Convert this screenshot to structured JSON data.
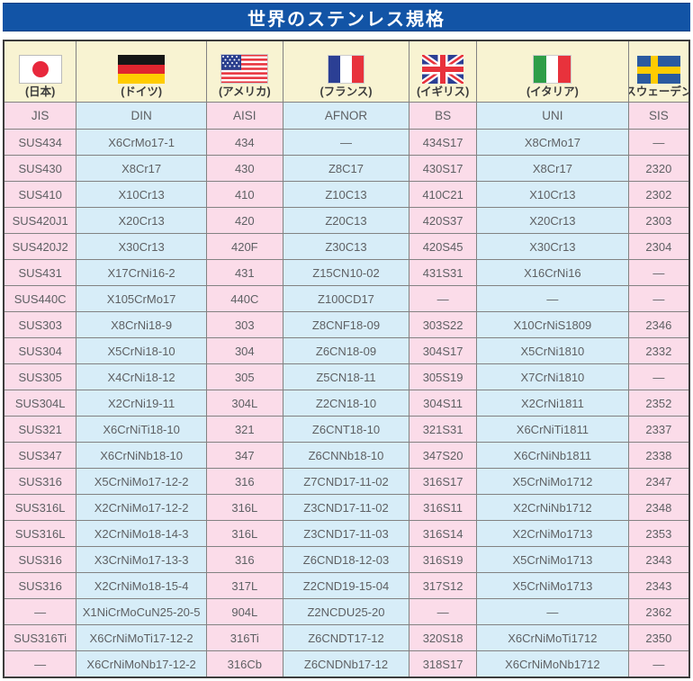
{
  "title": "世界のステンレス規格",
  "colors": {
    "title_bar_blue": "#1254A6",
    "flag_row_cream": "#F8F3D2",
    "pink_column": "#FBDCE9",
    "blue_column": "#D7EDF8",
    "grid_line": "#828282",
    "text_gray": "#5E6063"
  },
  "table": {
    "columns": [
      {
        "country": "(日本)",
        "standard": "JIS",
        "flag": "japan-flag"
      },
      {
        "country": "(ドイツ)",
        "standard": "DIN",
        "flag": "germany-flag"
      },
      {
        "country": "(アメリカ)",
        "standard": "AISI",
        "flag": "usa-flag"
      },
      {
        "country": "(フランス)",
        "standard": "AFNOR",
        "flag": "france-flag"
      },
      {
        "country": "(イギリス)",
        "standard": "BS",
        "flag": "uk-flag"
      },
      {
        "country": "(イタリア)",
        "standard": "UNI",
        "flag": "italy-flag"
      },
      {
        "country": "(スウェーデン)",
        "standard": "SIS",
        "flag": "sweden-flag"
      }
    ],
    "rows": [
      [
        "SUS434",
        "X6CrMo17-1",
        "434",
        "—",
        "434S17",
        "X8CrMo17",
        "—"
      ],
      [
        "SUS430",
        "X8Cr17",
        "430",
        "Z8C17",
        "430S17",
        "X8Cr17",
        "2320"
      ],
      [
        "SUS410",
        "X10Cr13",
        "410",
        "Z10C13",
        "410C21",
        "X10Cr13",
        "2302"
      ],
      [
        "SUS420J1",
        "X20Cr13",
        "420",
        "Z20C13",
        "420S37",
        "X20Cr13",
        "2303"
      ],
      [
        "SUS420J2",
        "X30Cr13",
        "420F",
        "Z30C13",
        "420S45",
        "X30Cr13",
        "2304"
      ],
      [
        "SUS431",
        "X17CrNi16-2",
        "431",
        "Z15CN10-02",
        "431S31",
        "X16CrNi16",
        "—"
      ],
      [
        "SUS440C",
        "X105CrMo17",
        "440C",
        "Z100CD17",
        "—",
        "—",
        "—"
      ],
      [
        "SUS303",
        "X8CrNi18-9",
        "303",
        "Z8CNF18-09",
        "303S22",
        "X10CrNiS1809",
        "2346"
      ],
      [
        "SUS304",
        "X5CrNi18-10",
        "304",
        "Z6CN18-09",
        "304S17",
        "X5CrNi1810",
        "2332"
      ],
      [
        "SUS305",
        "X4CrNi18-12",
        "305",
        "Z5CN18-11",
        "305S19",
        "X7CrNi1810",
        "—"
      ],
      [
        "SUS304L",
        "X2CrNi19-11",
        "304L",
        "Z2CN18-10",
        "304S11",
        "X2CrNi1811",
        "2352"
      ],
      [
        "SUS321",
        "X6CrNiTi18-10",
        "321",
        "Z6CNT18-10",
        "321S31",
        "X6CrNiTi1811",
        "2337"
      ],
      [
        "SUS347",
        "X6CrNiNb18-10",
        "347",
        "Z6CNNb18-10",
        "347S20",
        "X6CrNiNb1811",
        "2338"
      ],
      [
        "SUS316",
        "X5CrNiMo17-12-2",
        "316",
        "Z7CND17-11-02",
        "316S17",
        "X5CrNiMo1712",
        "2347"
      ],
      [
        "SUS316L",
        "X2CrNiMo17-12-2",
        "316L",
        "Z3CND17-11-02",
        "316S11",
        "X2CrNiNb1712",
        "2348"
      ],
      [
        "SUS316L",
        "X2CrNiMo18-14-3",
        "316L",
        "Z3CND17-11-03",
        "316S14",
        "X2CrNiMo1713",
        "2353"
      ],
      [
        "SUS316",
        "X3CrNiMo17-13-3",
        "316",
        "Z6CND18-12-03",
        "316S19",
        "X5CrNiMo1713",
        "2343"
      ],
      [
        "SUS316",
        "X2CrNiMo18-15-4",
        "317L",
        "Z2CND19-15-04",
        "317S12",
        "X5CrNiMo1713",
        "2343"
      ],
      [
        "—",
        "X1NiCrMoCuN25-20-5",
        "904L",
        "Z2NCDU25-20",
        "—",
        "—",
        "2362"
      ],
      [
        "SUS316Ti",
        "X6CrNiMoTi17-12-2",
        "316Ti",
        "Z6CNDT17-12",
        "320S18",
        "X6CrNiMoTi1712",
        "2350"
      ],
      [
        "—",
        "X6CrNiMoNb17-12-2",
        "316Cb",
        "Z6CNDNb17-12",
        "318S17",
        "X6CrNiMoNb1712",
        "—"
      ]
    ]
  }
}
